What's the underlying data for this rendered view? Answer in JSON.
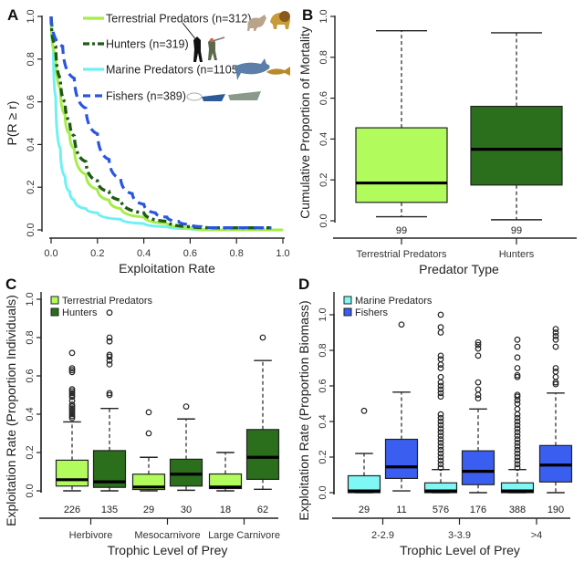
{
  "chart_data": [
    {
      "panel": "A",
      "type": "line",
      "title": "",
      "xlabel": "Exploitation Rate",
      "ylabel": "P(R ≥ r)",
      "xlim": [
        0,
        1
      ],
      "ylim": [
        0,
        1
      ],
      "xticks": [
        "0.0",
        "0.2",
        "0.4",
        "0.6",
        "0.8",
        "1.0"
      ],
      "yticks": [
        "0.0",
        "0.2",
        "0.4",
        "0.6",
        "0.8",
        "1.0"
      ],
      "legend_position": "top-right",
      "series": [
        {
          "name": "Terrestrial Predators (n=312)",
          "color": "#a6ed4a",
          "style": "solid",
          "x": [
            0.0,
            0.02,
            0.04,
            0.06,
            0.08,
            0.1,
            0.15,
            0.2,
            0.25,
            0.3,
            0.4,
            0.5,
            0.6,
            0.7,
            0.8,
            0.9,
            1.0
          ],
          "y": [
            1.0,
            0.82,
            0.66,
            0.54,
            0.45,
            0.38,
            0.26,
            0.19,
            0.14,
            0.1,
            0.06,
            0.03,
            0.01,
            0.0,
            0.0,
            0.0,
            0.0
          ]
        },
        {
          "name": "Hunters (n=319)",
          "color": "#1e5c14",
          "style": "dashdot",
          "x": [
            0.0,
            0.02,
            0.04,
            0.06,
            0.08,
            0.1,
            0.15,
            0.2,
            0.25,
            0.3,
            0.4,
            0.5,
            0.6,
            0.7,
            0.8,
            0.9,
            0.95
          ],
          "y": [
            1.0,
            0.86,
            0.71,
            0.6,
            0.51,
            0.44,
            0.32,
            0.23,
            0.18,
            0.14,
            0.08,
            0.04,
            0.015,
            0.01,
            0.01,
            0.01,
            0.01
          ]
        },
        {
          "name": "Marine Predators (n=1105)",
          "color": "#6ff0f2",
          "style": "solid",
          "x": [
            0.0,
            0.01,
            0.02,
            0.04,
            0.06,
            0.08,
            0.1,
            0.15,
            0.2,
            0.3,
            0.4,
            0.5,
            0.6,
            0.7,
            0.8,
            0.9,
            1.0
          ],
          "y": [
            1.0,
            0.85,
            0.62,
            0.38,
            0.25,
            0.18,
            0.14,
            0.1,
            0.08,
            0.05,
            0.03,
            0.015,
            0.005,
            0.0,
            0.0,
            0.0,
            0.0
          ]
        },
        {
          "name": "Fishers (n=389)",
          "color": "#2a55e0",
          "style": "dashed",
          "x": [
            0.0,
            0.05,
            0.1,
            0.15,
            0.2,
            0.25,
            0.3,
            0.35,
            0.4,
            0.45,
            0.5,
            0.55,
            0.6,
            0.65,
            0.7,
            0.8,
            0.9,
            0.95
          ],
          "y": [
            1.0,
            0.86,
            0.71,
            0.57,
            0.45,
            0.33,
            0.24,
            0.17,
            0.12,
            0.08,
            0.06,
            0.04,
            0.025,
            0.015,
            0.01,
            0.01,
            0.01,
            0.01
          ]
        }
      ]
    },
    {
      "panel": "B",
      "type": "box",
      "xlabel": "Predator Type",
      "ylabel": "Cumulative Proportion of Mortality",
      "ylim": [
        0,
        1
      ],
      "yticks": [
        "0.0",
        "0.2",
        "0.4",
        "0.6",
        "0.8",
        "1.0"
      ],
      "categories": [
        "Terrestrial Predators",
        "Hunters"
      ],
      "boxes": [
        {
          "category": "Terrestrial Predators",
          "color": "#b2fb5c",
          "min": 0.02,
          "q1": 0.09,
          "median": 0.185,
          "q3": 0.455,
          "max": 0.93,
          "n": "99"
        },
        {
          "category": "Hunters",
          "color": "#2b6e1c",
          "min": 0.005,
          "q1": 0.175,
          "median": 0.35,
          "q3": 0.56,
          "max": 0.92,
          "n": "99"
        }
      ]
    },
    {
      "panel": "C",
      "type": "box",
      "xlabel": "Trophic Level of Prey",
      "ylabel": "Exploitation Rate (Proportion Individuals)",
      "ylim": [
        0,
        1
      ],
      "yticks": [
        "0.0",
        "0.2",
        "0.4",
        "0.6",
        "0.8",
        "1.0"
      ],
      "categories": [
        "Herbivore",
        "Mesocarnivore",
        "Large Carnivore"
      ],
      "legend_position": "top-left",
      "legend": [
        {
          "label": "Terrestrial Predators",
          "color": "#b2fb5c"
        },
        {
          "label": "Hunters",
          "color": "#2b6e1c"
        }
      ],
      "boxes": [
        {
          "category": "Herbivore",
          "group": "Terrestrial Predators",
          "color": "#b2fb5c",
          "min": 0.0,
          "q1": 0.025,
          "median": 0.058,
          "q3": 0.16,
          "max": 0.36,
          "n": "226",
          "outliers": [
            0.38,
            0.39,
            0.4,
            0.41,
            0.42,
            0.43,
            0.44,
            0.45,
            0.47,
            0.49,
            0.5,
            0.51,
            0.52,
            0.53,
            0.62,
            0.63,
            0.64,
            0.72
          ]
        },
        {
          "category": "Herbivore",
          "group": "Hunters",
          "color": "#2b6e1c",
          "min": 0.0,
          "q1": 0.018,
          "median": 0.047,
          "q3": 0.21,
          "max": 0.43,
          "n": "135",
          "outliers": [
            0.5,
            0.51,
            0.66,
            0.68,
            0.7,
            0.71,
            0.78,
            0.8,
            0.93
          ]
        },
        {
          "category": "Mesocarnivore",
          "group": "Terrestrial Predators",
          "color": "#b2fb5c",
          "min": 0.0,
          "q1": 0.007,
          "median": 0.02,
          "q3": 0.087,
          "max": 0.175,
          "n": "29",
          "outliers": [
            0.3,
            0.41
          ]
        },
        {
          "category": "Mesocarnivore",
          "group": "Hunters",
          "color": "#2b6e1c",
          "min": 0.003,
          "q1": 0.025,
          "median": 0.087,
          "q3": 0.165,
          "max": 0.375,
          "n": "30",
          "outliers": [
            0.44
          ]
        },
        {
          "category": "Large Carnivore",
          "group": "Terrestrial Predators",
          "color": "#b2fb5c",
          "min": 0.0,
          "q1": 0.012,
          "median": 0.02,
          "q3": 0.088,
          "max": 0.2,
          "n": "18",
          "outliers": []
        },
        {
          "category": "Large Carnivore",
          "group": "Hunters",
          "color": "#2b6e1c",
          "min": 0.008,
          "q1": 0.06,
          "median": 0.175,
          "q3": 0.32,
          "max": 0.68,
          "n": "62",
          "outliers": [
            0.8
          ]
        }
      ]
    },
    {
      "panel": "D",
      "type": "box",
      "xlabel": "Trophic Level of Prey",
      "ylabel": "Exploitation Rate (Proportion Biomass)",
      "ylim": [
        0,
        1.1
      ],
      "yticks": [
        "0.0",
        "0.2",
        "0.4",
        "0.6",
        "0.8",
        "1.0"
      ],
      "categories": [
        "2-2.9",
        "3-3.9",
        ">4"
      ],
      "legend_position": "top-left",
      "legend": [
        {
          "label": "Marine Predators",
          "color": "#7ff7f4"
        },
        {
          "label": "Fishers",
          "color": "#3a5ef0"
        }
      ],
      "boxes": [
        {
          "category": "2-2.9",
          "group": "Marine Predators",
          "color": "#7ff7f4",
          "min": 0.0,
          "q1": 0.0,
          "median": 0.01,
          "q3": 0.095,
          "max": 0.22,
          "n": "29",
          "outliers": [
            0.46
          ]
        },
        {
          "category": "2-2.9",
          "group": "Fishers",
          "color": "#3a5ef0",
          "min": 0.01,
          "q1": 0.08,
          "median": 0.145,
          "q3": 0.3,
          "max": 0.565,
          "n": "11",
          "outliers": [
            0.945
          ]
        },
        {
          "category": "3-3.9",
          "group": "Marine Predators",
          "color": "#7ff7f4",
          "min": 0.0,
          "q1": 0.0,
          "median": 0.01,
          "q3": 0.055,
          "max": 0.13,
          "n": "576",
          "outliers": [
            0.14,
            0.16,
            0.18,
            0.2,
            0.22,
            0.24,
            0.26,
            0.28,
            0.3,
            0.32,
            0.34,
            0.36,
            0.38,
            0.4,
            0.42,
            0.44,
            0.54,
            0.56,
            0.58,
            0.6,
            0.62,
            0.65,
            0.7,
            0.72,
            0.75,
            0.77,
            0.9,
            0.93,
            1.0
          ]
        },
        {
          "category": "3-3.9",
          "group": "Fishers",
          "color": "#3a5ef0",
          "min": 0.0,
          "q1": 0.045,
          "median": 0.12,
          "q3": 0.235,
          "max": 0.47,
          "n": "176",
          "outliers": [
            0.53,
            0.55,
            0.58,
            0.62,
            0.77,
            0.81,
            0.83,
            0.845
          ]
        },
        {
          "category": ">4",
          "group": "Marine Predators",
          "color": "#7ff7f4",
          "min": 0.0,
          "q1": 0.0,
          "median": 0.01,
          "q3": 0.055,
          "max": 0.13,
          "n": "388",
          "outliers": [
            0.14,
            0.16,
            0.18,
            0.2,
            0.22,
            0.24,
            0.26,
            0.28,
            0.3,
            0.32,
            0.34,
            0.36,
            0.38,
            0.4,
            0.42,
            0.44,
            0.47,
            0.5,
            0.52,
            0.54,
            0.55,
            0.65,
            0.66,
            0.7,
            0.76,
            0.82,
            0.86
          ]
        },
        {
          "category": ">4",
          "group": "Fishers",
          "color": "#3a5ef0",
          "min": 0.0,
          "q1": 0.06,
          "median": 0.155,
          "q3": 0.265,
          "max": 0.56,
          "n": "190",
          "outliers": [
            0.61,
            0.62,
            0.65,
            0.68,
            0.7,
            0.82,
            0.86,
            0.88,
            0.9,
            0.92
          ]
        }
      ]
    }
  ],
  "labels": {
    "panel_a": "A",
    "panel_b": "B",
    "panel_c": "C",
    "panel_d": "D"
  }
}
